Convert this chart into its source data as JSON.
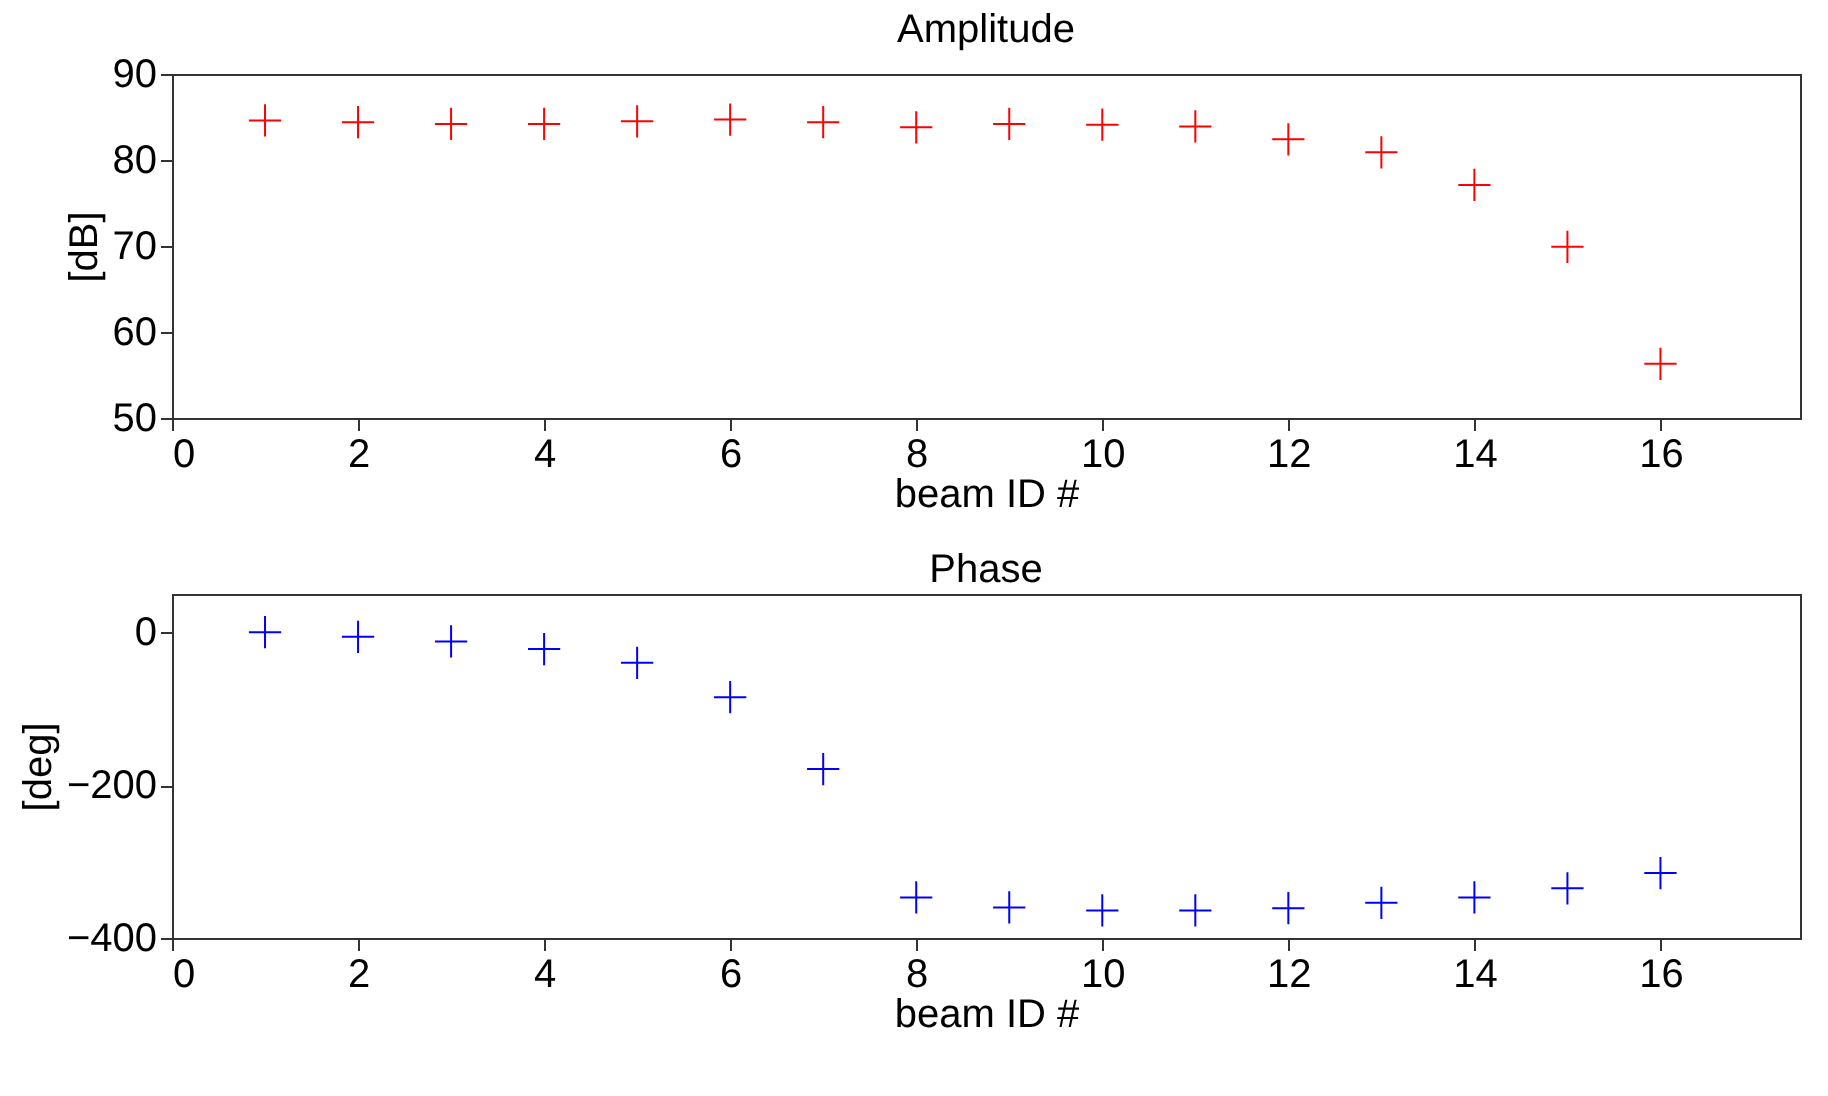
{
  "chart_data": [
    {
      "type": "scatter",
      "title": "Amplitude",
      "xlabel": "beam ID #",
      "ylabel": "[dB]",
      "marker": "cross",
      "grid": false,
      "xlim": [
        0,
        17.5
      ],
      "xticks": [
        0,
        2,
        4,
        6,
        8,
        10,
        12,
        14,
        16
      ],
      "ylim": [
        50,
        90
      ],
      "yticks": [
        50,
        60,
        70,
        80,
        90
      ],
      "x": [
        1,
        2,
        3,
        4,
        5,
        6,
        7,
        8,
        9,
        10,
        11,
        12,
        13,
        14,
        15,
        16
      ],
      "series": [
        {
          "color": "#ff0000",
          "values": [
            84.6,
            84.4,
            84.2,
            84.2,
            84.5,
            84.7,
            84.4,
            83.8,
            84.2,
            84.1,
            83.9,
            82.4,
            80.9,
            77.1,
            69.9,
            56.3
          ]
        }
      ]
    },
    {
      "type": "scatter",
      "title": "Phase",
      "xlabel": "beam ID #",
      "ylabel": "[deg]",
      "marker": "cross",
      "grid": false,
      "xlim": [
        0,
        17.5
      ],
      "xticks": [
        0,
        2,
        4,
        6,
        8,
        10,
        12,
        14,
        16
      ],
      "ylim": [
        -400,
        50
      ],
      "yticks": [
        -400,
        -200,
        0
      ],
      "x": [
        1,
        2,
        3,
        4,
        5,
        6,
        7,
        8,
        9,
        10,
        11,
        12,
        13,
        14,
        15,
        16
      ],
      "series": [
        {
          "color": "#0000ff",
          "values": [
            0,
            -6,
            -12,
            -22,
            -40,
            -85,
            -179,
            -347,
            -360,
            -364,
            -364,
            -361,
            -354,
            -347,
            -335,
            -315
          ]
        }
      ]
    }
  ]
}
